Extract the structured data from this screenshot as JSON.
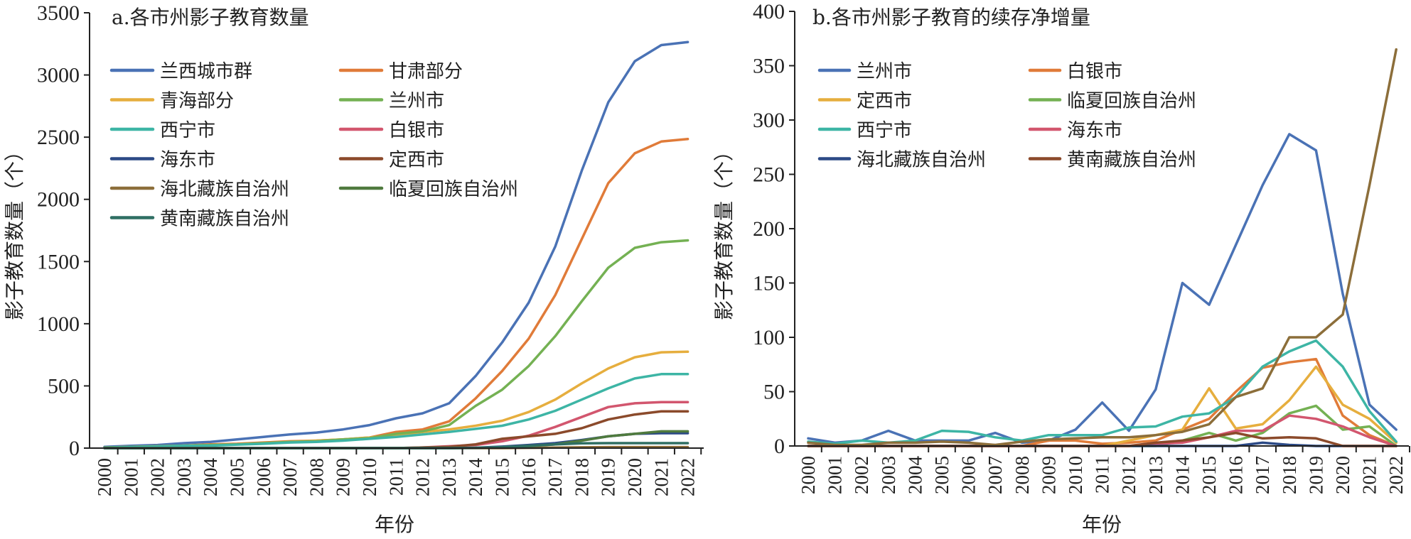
{
  "chart_data": [
    {
      "type": "line",
      "title": "a.各市州影子教育数量",
      "xlabel": "年份",
      "ylabel": "影子教育数量（个）",
      "ylim": [
        0,
        3500
      ],
      "yticks": [
        0,
        500,
        1000,
        1500,
        2000,
        2500,
        3000,
        3500
      ],
      "grid": false,
      "legend_position": "top-left",
      "x": [
        "2000",
        "2001",
        "2002",
        "2003",
        "2004",
        "2005",
        "2006",
        "2007",
        "2008",
        "2009",
        "2010",
        "2011",
        "2012",
        "2013",
        "2014",
        "2015",
        "2016",
        "2017",
        "2018",
        "2019",
        "2020",
        "2021",
        "2022"
      ],
      "series": [
        {
          "name": "兰西城市群",
          "color": "#4A72B5",
          "values": [
            10,
            18,
            25,
            40,
            50,
            70,
            90,
            110,
            125,
            150,
            185,
            240,
            280,
            360,
            580,
            850,
            1170,
            1620,
            2230,
            2780,
            3110,
            3240,
            3265
          ]
        },
        {
          "name": "甘肃部分",
          "color": "#E07B39",
          "values": [
            5,
            10,
            15,
            20,
            30,
            35,
            45,
            55,
            60,
            70,
            85,
            130,
            150,
            215,
            400,
            620,
            880,
            1230,
            1680,
            2130,
            2370,
            2465,
            2485
          ]
        },
        {
          "name": "青海部分",
          "color": "#E6AE3E",
          "values": [
            3,
            8,
            12,
            18,
            25,
            30,
            40,
            50,
            60,
            70,
            85,
            105,
            130,
            150,
            180,
            220,
            290,
            390,
            520,
            640,
            730,
            770,
            775
          ]
        },
        {
          "name": "兰州市",
          "color": "#74B153",
          "values": [
            5,
            10,
            15,
            20,
            25,
            30,
            40,
            50,
            55,
            70,
            80,
            115,
            135,
            185,
            340,
            470,
            660,
            900,
            1180,
            1450,
            1610,
            1655,
            1670
          ]
        },
        {
          "name": "西宁市",
          "color": "#3DB5A5",
          "values": [
            3,
            8,
            12,
            18,
            20,
            28,
            35,
            45,
            50,
            60,
            75,
            90,
            110,
            130,
            155,
            180,
            230,
            300,
            390,
            480,
            560,
            595,
            595
          ]
        },
        {
          "name": "白银市",
          "color": "#D2566E",
          "values": [
            0,
            0,
            0,
            0,
            0,
            0,
            0,
            0,
            0,
            0,
            0,
            0,
            5,
            15,
            25,
            55,
            100,
            170,
            250,
            330,
            360,
            370,
            370
          ]
        },
        {
          "name": "海东市",
          "color": "#2C4A86",
          "values": [
            0,
            0,
            0,
            0,
            0,
            0,
            0,
            0,
            0,
            0,
            0,
            0,
            0,
            0,
            3,
            12,
            25,
            40,
            65,
            95,
            115,
            120,
            120
          ]
        },
        {
          "name": "定西市",
          "color": "#8B4A2B",
          "values": [
            0,
            0,
            0,
            0,
            0,
            0,
            0,
            0,
            0,
            0,
            0,
            0,
            5,
            10,
            30,
            75,
            95,
            115,
            160,
            230,
            270,
            295,
            295
          ]
        },
        {
          "name": "海北藏族自治州",
          "color": "#8C6E3A",
          "values": [
            0,
            0,
            0,
            0,
            0,
            0,
            0,
            0,
            0,
            0,
            0,
            0,
            0,
            0,
            0,
            0,
            2,
            4,
            6,
            8,
            8,
            8,
            8
          ]
        },
        {
          "name": "临夏回族自治州",
          "color": "#4F7A3E",
          "values": [
            0,
            0,
            0,
            0,
            0,
            0,
            0,
            0,
            0,
            0,
            0,
            0,
            0,
            0,
            2,
            5,
            15,
            30,
            60,
            95,
            115,
            135,
            135
          ]
        },
        {
          "name": "黄南藏族自治州",
          "color": "#2F6F63",
          "values": [
            0,
            0,
            0,
            0,
            0,
            0,
            0,
            0,
            0,
            0,
            0,
            0,
            0,
            0,
            2,
            8,
            18,
            30,
            38,
            40,
            40,
            40,
            40
          ]
        }
      ]
    },
    {
      "type": "line",
      "title": "b.各市州影子教育的续存净增量",
      "xlabel": "年份",
      "ylabel": "影子教育数量（个）",
      "ylim": [
        0,
        400
      ],
      "yticks": [
        0,
        50,
        100,
        150,
        200,
        250,
        300,
        350,
        400
      ],
      "grid": false,
      "legend_position": "top-left",
      "x": [
        "2000",
        "2001",
        "2002",
        "2003",
        "2004",
        "2005",
        "2006",
        "2007",
        "2008",
        "2009",
        "2010",
        "2011",
        "2012",
        "2013",
        "2014",
        "2015",
        "2016",
        "2017",
        "2018",
        "2019",
        "2020",
        "2021",
        "2022"
      ],
      "series": [
        {
          "name": "兰州市",
          "color": "#4A72B5",
          "values": [
            7,
            3,
            5,
            14,
            5,
            5,
            5,
            12,
            3,
            5,
            15,
            40,
            14,
            52,
            150,
            130,
            185,
            240,
            287,
            272,
            140,
            38,
            15
          ]
        },
        {
          "name": "白银市",
          "color": "#E07B39",
          "values": [
            0,
            0,
            0,
            0,
            0,
            0,
            0,
            0,
            0,
            5,
            5,
            2,
            3,
            5,
            15,
            25,
            50,
            72,
            77,
            80,
            28,
            10,
            0
          ]
        },
        {
          "name": "定西市",
          "color": "#E6AE3E",
          "values": [
            0,
            0,
            0,
            0,
            0,
            0,
            0,
            0,
            0,
            0,
            0,
            0,
            5,
            10,
            15,
            53,
            16,
            20,
            42,
            73,
            38,
            25,
            3
          ]
        },
        {
          "name": "临夏回族自治州",
          "color": "#74B153",
          "values": [
            0,
            0,
            0,
            0,
            0,
            0,
            0,
            0,
            0,
            0,
            0,
            0,
            0,
            0,
            5,
            12,
            5,
            12,
            30,
            37,
            15,
            18,
            0
          ]
        },
        {
          "name": "西宁市",
          "color": "#3DB5A5",
          "values": [
            4,
            2,
            5,
            3,
            5,
            14,
            13,
            8,
            5,
            10,
            10,
            10,
            17,
            18,
            27,
            30,
            45,
            73,
            87,
            97,
            73,
            32,
            4
          ]
        },
        {
          "name": "海东市",
          "color": "#D2566E",
          "values": [
            0,
            0,
            0,
            0,
            0,
            0,
            0,
            0,
            0,
            0,
            0,
            0,
            0,
            2,
            3,
            8,
            14,
            14,
            28,
            25,
            18,
            8,
            0
          ]
        },
        {
          "name": "海北藏族自治州",
          "color": "#2C4A86",
          "values": [
            0,
            0,
            0,
            0,
            0,
            0,
            0,
            0,
            0,
            0,
            0,
            0,
            0,
            0,
            0,
            0,
            0,
            3,
            1,
            0,
            0,
            0,
            0
          ]
        },
        {
          "name": "黄南藏族自治州",
          "color": "#8B4A2B",
          "values": [
            0,
            0,
            0,
            0,
            0,
            0,
            0,
            0,
            0,
            0,
            0,
            0,
            0,
            3,
            5,
            8,
            12,
            7,
            8,
            7,
            0,
            0,
            0
          ]
        },
        {
          "name": "",
          "color": "#8C6E3A",
          "values": [
            3,
            1,
            1,
            3,
            3,
            4,
            3,
            1,
            4,
            6,
            7,
            8,
            8,
            10,
            13,
            20,
            45,
            53,
            100,
            100,
            121,
            240,
            365
          ]
        }
      ]
    }
  ]
}
